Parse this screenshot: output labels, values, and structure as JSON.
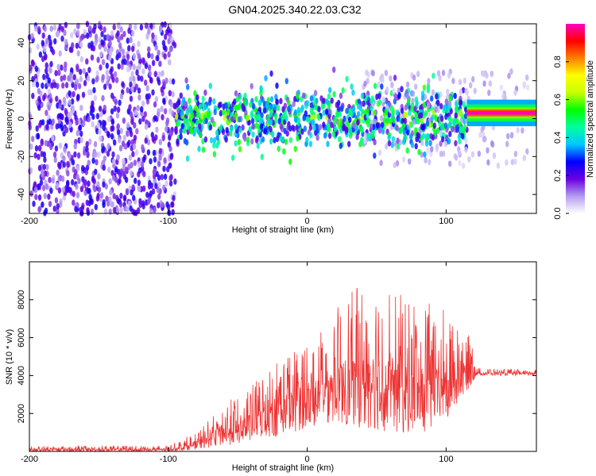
{
  "title": "GN04.2025.340.22.03.C32",
  "chart_data": [
    {
      "type": "heatmap",
      "title": "GN04.2025.340.22.03.C32",
      "xlabel": "Height of straight line (km)",
      "ylabel": "Frequency (Hz)",
      "xlim": [
        -200,
        165
      ],
      "ylim": [
        -50,
        50
      ],
      "x_ticks": [
        -200,
        -100,
        0,
        100
      ],
      "y_ticks": [
        -40,
        -20,
        0,
        20,
        40
      ],
      "colorbar": {
        "label": "Normalized spectral amplitude",
        "range": [
          0,
          1
        ],
        "ticks": [
          0.0,
          0.2,
          0.4,
          0.6,
          0.8
        ],
        "colors": [
          "#ffffff",
          "#b39cf0",
          "#6a00e0",
          "#0000ff",
          "#00c8ff",
          "#00ffa0",
          "#00ff00",
          "#c8ff00",
          "#ffff00",
          "#ff8000",
          "#ff0000",
          "#ff00c0"
        ]
      },
      "features": [
        {
          "x_range": [
            -200,
            -95
          ],
          "description_level": 0.15
        },
        {
          "x_range": [
            -95,
            115
          ],
          "center_frequency": 0,
          "level": 0.35
        },
        {
          "x_range": [
            115,
            165
          ],
          "center_frequency": 3,
          "level": 1.0
        }
      ]
    },
    {
      "type": "line",
      "xlabel": "Height of straight line (km)",
      "ylabel": "SNR (10 * v/v)",
      "xlim": [
        -200,
        165
      ],
      "ylim": [
        0,
        10000
      ],
      "x_ticks": [
        -200,
        -100,
        0,
        100
      ],
      "y_ticks": [
        2000,
        4000,
        6000,
        8000
      ],
      "color": "#ee3333",
      "envelope": [
        {
          "x": -200,
          "low": 0,
          "high": 300
        },
        {
          "x": -100,
          "low": 0,
          "high": 300
        },
        {
          "x": -80,
          "low": 100,
          "high": 1000
        },
        {
          "x": -60,
          "low": 300,
          "high": 2500
        },
        {
          "x": -40,
          "low": 500,
          "high": 3500
        },
        {
          "x": -20,
          "low": 800,
          "high": 5000
        },
        {
          "x": 0,
          "low": 1200,
          "high": 6000
        },
        {
          "x": 20,
          "low": 1500,
          "high": 7500
        },
        {
          "x": 40,
          "low": 1200,
          "high": 9000
        },
        {
          "x": 60,
          "low": 1000,
          "high": 8500
        },
        {
          "x": 80,
          "low": 800,
          "high": 8000
        },
        {
          "x": 100,
          "low": 1500,
          "high": 7500
        },
        {
          "x": 118,
          "low": 3500,
          "high": 6000
        },
        {
          "x": 122,
          "low": 4000,
          "high": 4400
        },
        {
          "x": 165,
          "low": 4000,
          "high": 4300
        }
      ]
    }
  ]
}
